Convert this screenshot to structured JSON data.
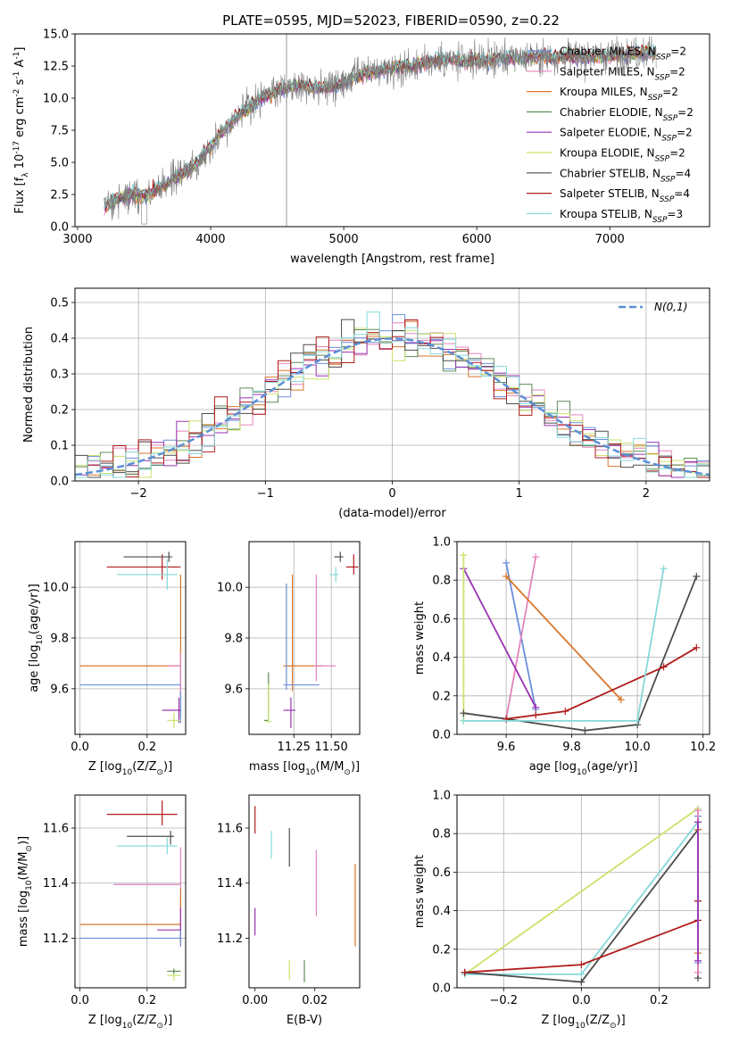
{
  "figure": {
    "title": "PLATE=0595, MJD=52023, FIBERID=0590, z=0.22"
  },
  "series_colors": {
    "chabrier_miles": "#6b8fdc",
    "salpeter_miles": "#e385bd",
    "kroupa_miles": "#d9762b",
    "chabrier_elodie": "#5e8c5a",
    "salpeter_elodie": "#9a34b3",
    "kroupa_elodie": "#c9e36a",
    "chabrier_stelib": "#4d4d4d",
    "salpeter_stelib": "#b01c1c",
    "kroupa_stelib": "#85d8d8",
    "normal_curve": "#5b8fd6",
    "data_spectrum": "#808080"
  },
  "chart_data": [
    {
      "id": "spectrum",
      "type": "line",
      "title": "PLATE=0595, MJD=52023, FIBERID=0590, z=0.22",
      "xlabel": "wavelength [Angstrom, rest frame]",
      "ylabel": "Flux [f_λ 10^-17 erg cm^-2 s^-1 A^-1]",
      "xlim": [
        2980,
        7750
      ],
      "ylim": [
        0,
        15
      ],
      "xticks": [
        3000,
        4000,
        5000,
        6000,
        7000
      ],
      "yticks": [
        0.0,
        2.5,
        5.0,
        7.5,
        10.0,
        12.5,
        15.0
      ],
      "legend_position": "right",
      "legend": [
        {
          "key": "chabrier_miles",
          "imf": "Chabrier",
          "lib": "MILES",
          "n_ssp": "2"
        },
        {
          "key": "salpeter_miles",
          "imf": "Salpeter",
          "lib": "MILES",
          "n_ssp": "2"
        },
        {
          "key": "kroupa_miles",
          "imf": "Kroupa",
          "lib": "MILES",
          "n_ssp": "2"
        },
        {
          "key": "chabrier_elodie",
          "imf": "Chabrier",
          "lib": "ELODIE",
          "n_ssp": "2"
        },
        {
          "key": "salpeter_elodie",
          "imf": "Salpeter",
          "lib": "ELODIE",
          "n_ssp": "2"
        },
        {
          "key": "kroupa_elodie",
          "imf": "Kroupa",
          "lib": "ELODIE",
          "n_ssp": "2"
        },
        {
          "key": "chabrier_stelib",
          "imf": "Chabrier",
          "lib": "STELIB",
          "n_ssp": "4"
        },
        {
          "key": "salpeter_stelib",
          "imf": "Salpeter",
          "lib": "STELIB",
          "n_ssp": "4"
        },
        {
          "key": "kroupa_stelib",
          "imf": "Kroupa",
          "lib": "STELIB",
          "n_ssp": "3"
        }
      ],
      "continuum": {
        "x": [
          3200,
          3300,
          3400,
          3500,
          3600,
          3700,
          3800,
          3900,
          4000,
          4100,
          4200,
          4300,
          4400,
          4500,
          4600,
          4700,
          4800,
          4900,
          5000,
          5100,
          5200,
          5300,
          5400,
          5500,
          5600,
          5700,
          5800,
          5900,
          6000,
          6100,
          6200,
          6300,
          6400,
          6500,
          6600,
          6700,
          6800,
          6900,
          7000,
          7100,
          7200,
          7300
        ],
        "y": [
          1.6,
          2.2,
          2.5,
          2.4,
          2.8,
          3.6,
          4.2,
          5.0,
          6.3,
          7.5,
          8.6,
          9.4,
          10.1,
          10.6,
          10.9,
          11.1,
          10.7,
          10.9,
          11.1,
          11.7,
          12.0,
          12.2,
          12.4,
          12.5,
          12.7,
          12.9,
          13.0,
          12.8,
          12.9,
          13.0,
          13.1,
          13.1,
          13.2,
          13.2,
          13.2,
          13.3,
          13.2,
          13.3,
          13.3,
          13.4,
          13.5,
          13.6
        ]
      }
    },
    {
      "id": "residuals",
      "type": "histogram",
      "xlabel": "(data-model)/error",
      "ylabel": "Normed distribution",
      "xlim": [
        -2.5,
        2.5
      ],
      "ylim": [
        0,
        0.54
      ],
      "xticks": [
        -2,
        -1,
        0,
        1,
        2
      ],
      "yticks": [
        0.0,
        0.1,
        0.2,
        0.3,
        0.4,
        0.5
      ],
      "grid": true,
      "legend_position": "top-right",
      "curve_label": "N(0,1)",
      "bin_width": 0.1,
      "bin_start": -2.5
    },
    {
      "id": "age_vs_Z",
      "type": "errorbar",
      "xlabel": "Z [log10(Z/Z⊙)]",
      "ylabel": "age [log10(age/yr)]",
      "xlim": [
        -0.015,
        0.315
      ],
      "ylim": [
        9.42,
        10.18
      ],
      "xticks": [
        0.0,
        0.2
      ],
      "yticks": [
        9.6,
        9.8,
        10.0
      ],
      "grid": true,
      "points": [
        {
          "key": "salpeter_stelib",
          "x": 0.245,
          "xerr": [
            0.165,
            0.055
          ],
          "y": 10.08,
          "yerr": [
            0.05,
            0.05
          ]
        },
        {
          "key": "chabrier_stelib",
          "x": 0.265,
          "xerr": [
            0.135,
            0.01
          ],
          "y": 10.12,
          "yerr": [
            0.02,
            0.02
          ]
        },
        {
          "key": "kroupa_stelib",
          "x": 0.26,
          "xerr": [
            0.15,
            0.03
          ],
          "y": 10.05,
          "yerr": [
            0.06,
            0.06
          ]
        },
        {
          "key": "kroupa_miles",
          "x": 0.3,
          "xerr": [
            0.3,
            0.0
          ],
          "y": 9.69,
          "yerr": [
            0.2,
            0.36
          ]
        },
        {
          "key": "chabrier_miles",
          "x": 0.3,
          "xerr": [
            0.3,
            0.0
          ],
          "y": 9.615,
          "yerr": [
            0.15,
            0.06
          ]
        },
        {
          "key": "salpeter_elodie",
          "x": 0.295,
          "xerr": [
            0.05,
            0.005
          ],
          "y": 9.515,
          "yerr": [
            0.05,
            0.05
          ]
        },
        {
          "key": "kroupa_elodie",
          "x": 0.28,
          "xerr": [
            0.02,
            0.02
          ],
          "y": 9.475,
          "yerr": [
            0.03,
            0.03
          ]
        },
        {
          "key": "salpeter_miles",
          "x": 0.3,
          "xerr": [
            0.04,
            0.0
          ],
          "y": 9.69,
          "yerr": [
            0.1,
            0.05
          ]
        }
      ]
    },
    {
      "id": "age_vs_mass",
      "type": "errorbar",
      "xlabel": "mass [log10(M/M⊙)]",
      "xlim": [
        10.95,
        11.69
      ],
      "ylim": [
        9.42,
        10.18
      ],
      "xticks": [
        11.25,
        11.5
      ],
      "yticks": [
        9.6,
        9.8,
        10.0
      ],
      "grid": true,
      "points": [
        {
          "key": "salpeter_stelib",
          "x": 11.65,
          "xerr": [
            0.05,
            0.03
          ],
          "y": 10.08,
          "yerr": [
            0.03,
            0.05
          ]
        },
        {
          "key": "chabrier_stelib",
          "x": 11.56,
          "xerr": [
            0.04,
            0.02
          ],
          "y": 10.12,
          "yerr": [
            0.02,
            0.02
          ]
        },
        {
          "key": "kroupa_stelib",
          "x": 11.53,
          "xerr": [
            0.04,
            0.02
          ],
          "y": 10.05,
          "yerr": [
            0.03,
            0.03
          ]
        },
        {
          "key": "kroupa_miles",
          "x": 11.24,
          "xerr": [
            0.06,
            0.2
          ],
          "y": 9.69,
          "yerr": [
            0.1,
            0.36
          ]
        },
        {
          "key": "chabrier_miles",
          "x": 11.2,
          "xerr": [
            0.02,
            0.22
          ],
          "y": 9.615,
          "yerr": [
            0.02,
            0.4
          ]
        },
        {
          "key": "salpeter_miles",
          "x": 11.4,
          "xerr": [
            0.02,
            0.13
          ],
          "y": 9.69,
          "yerr": [
            0.06,
            0.36
          ]
        },
        {
          "key": "salpeter_elodie",
          "x": 11.23,
          "xerr": [
            0.05,
            0.03
          ],
          "y": 9.515,
          "yerr": [
            0.07,
            0.05
          ]
        },
        {
          "key": "chabrier_elodie",
          "x": 11.08,
          "xerr": [
            0.03,
            0.0
          ],
          "y": 9.475,
          "yerr": [
            0.0,
            0.19
          ]
        },
        {
          "key": "kroupa_elodie",
          "x": 11.08,
          "xerr": [
            0.02,
            0.02
          ],
          "y": 9.47,
          "yerr": [
            0.0,
            0.15
          ]
        }
      ]
    },
    {
      "id": "massweight_vs_age",
      "type": "line",
      "xlabel": "age [log10(age/yr)]",
      "ylabel": "mass weight",
      "xlim": [
        9.45,
        10.22
      ],
      "ylim": [
        0,
        1
      ],
      "xticks": [
        9.6,
        9.8,
        10.0,
        10.2
      ],
      "yticks": [
        0.0,
        0.2,
        0.4,
        0.6,
        0.8,
        1.0
      ],
      "grid": true,
      "series": [
        {
          "key": "chabrier_miles",
          "x": [
            9.6,
            9.69
          ],
          "y": [
            0.89,
            0.13
          ]
        },
        {
          "key": "salpeter_miles",
          "x": [
            9.6,
            9.69
          ],
          "y": [
            0.08,
            0.92
          ]
        },
        {
          "key": "kroupa_miles",
          "x": [
            9.6,
            9.95
          ],
          "y": [
            0.82,
            0.18
          ]
        },
        {
          "key": "salpeter_elodie",
          "x": [
            9.47,
            9.69
          ],
          "y": [
            0.86,
            0.14
          ]
        },
        {
          "key": "kroupa_elodie",
          "x": [
            9.47,
            9.47
          ],
          "y": [
            0.93,
            0.07
          ]
        },
        {
          "key": "chabrier_stelib",
          "x": [
            9.47,
            9.6,
            9.84,
            10.0,
            10.18
          ],
          "y": [
            0.11,
            0.08,
            0.02,
            0.05,
            0.82
          ]
        },
        {
          "key": "salpeter_stelib",
          "x": [
            9.6,
            9.69,
            9.78,
            10.08,
            10.18
          ],
          "y": [
            0.08,
            0.1,
            0.12,
            0.35,
            0.45
          ]
        },
        {
          "key": "kroupa_stelib",
          "x": [
            9.47,
            10.0,
            10.08
          ],
          "y": [
            0.07,
            0.07,
            0.86
          ]
        }
      ]
    },
    {
      "id": "mass_vs_Z",
      "type": "errorbar",
      "xlabel": "Z [log10(Z/Z⊙)]",
      "ylabel": "mass [log10(M/M⊙)]",
      "xlim": [
        -0.015,
        0.315
      ],
      "ylim": [
        11.02,
        11.72
      ],
      "xticks": [
        0.0,
        0.2
      ],
      "yticks": [
        11.2,
        11.4,
        11.6
      ],
      "grid": true,
      "points": [
        {
          "key": "salpeter_stelib",
          "x": 0.245,
          "xerr": [
            0.165,
            0.045
          ],
          "y": 11.65,
          "yerr": [
            0.04,
            0.05
          ]
        },
        {
          "key": "chabrier_stelib",
          "x": 0.27,
          "xerr": [
            0.13,
            0.01
          ],
          "y": 11.57,
          "yerr": [
            0.03,
            0.02
          ]
        },
        {
          "key": "kroupa_stelib",
          "x": 0.26,
          "xerr": [
            0.15,
            0.03
          ],
          "y": 11.535,
          "yerr": [
            0.03,
            0.03
          ]
        },
        {
          "key": "salpeter_miles",
          "x": 0.3,
          "xerr": [
            0.2,
            0.0
          ],
          "y": 11.395,
          "yerr": [
            0.15,
            0.135
          ]
        },
        {
          "key": "kroupa_miles",
          "x": 0.3,
          "xerr": [
            0.3,
            0.0
          ],
          "y": 11.25,
          "yerr": [
            0.08,
            0.13
          ]
        },
        {
          "key": "salpeter_elodie",
          "x": 0.3,
          "xerr": [
            0.07,
            0.0
          ],
          "y": 11.23,
          "yerr": [
            0.04,
            0.08
          ]
        },
        {
          "key": "chabrier_miles",
          "x": 0.3,
          "xerr": [
            0.3,
            0.0
          ],
          "y": 11.2,
          "yerr": [
            0.03,
            0.03
          ]
        },
        {
          "key": "kroupa_elodie",
          "x": 0.28,
          "xerr": [
            0.02,
            0.02
          ],
          "y": 11.065,
          "yerr": [
            0.02,
            0.02
          ]
        },
        {
          "key": "chabrier_elodie",
          "x": 0.28,
          "xerr": [
            0.02,
            0.02
          ],
          "y": 11.08,
          "yerr": [
            0.01,
            0.01
          ]
        }
      ]
    },
    {
      "id": "mass_vs_ebv",
      "type": "errorbar",
      "xlabel": "E(B-V)",
      "xlim": [
        -0.002,
        0.035
      ],
      "ylim": [
        11.02,
        11.72
      ],
      "xticks": [
        0.0,
        0.02
      ],
      "yticks": [
        11.2,
        11.4,
        11.6
      ],
      "grid": false,
      "points": [
        {
          "key": "salpeter_stelib",
          "x": 0.0,
          "y": 11.63,
          "yerr": [
            0.05,
            0.05
          ]
        },
        {
          "key": "salpeter_elodie",
          "x": 0.0,
          "y": 11.26,
          "yerr": [
            0.05,
            0.05
          ]
        },
        {
          "key": "kroupa_stelib",
          "x": 0.0055,
          "y": 11.54,
          "yerr": [
            0.05,
            0.05
          ]
        },
        {
          "key": "chabrier_stelib",
          "x": 0.0115,
          "y": 11.53,
          "yerr": [
            0.07,
            0.07
          ]
        },
        {
          "key": "kroupa_elodie",
          "x": 0.0115,
          "y": 11.085,
          "yerr": [
            0.035,
            0.035
          ]
        },
        {
          "key": "chabrier_elodie",
          "x": 0.0165,
          "y": 11.08,
          "yerr": [
            0.04,
            0.04
          ]
        },
        {
          "key": "salpeter_miles",
          "x": 0.0205,
          "y": 11.4,
          "yerr": [
            0.12,
            0.12
          ]
        },
        {
          "key": "kroupa_miles",
          "x": 0.0335,
          "y": 11.32,
          "yerr": [
            0.15,
            0.15
          ]
        }
      ]
    },
    {
      "id": "massweight_vs_Z",
      "type": "line",
      "xlabel": "Z [log10(Z/Z⊙)]",
      "ylabel": "mass weight",
      "xlim": [
        -0.32,
        0.33
      ],
      "ylim": [
        0,
        1
      ],
      "xticks": [
        -0.2,
        0.0,
        0.2
      ],
      "yticks": [
        0.0,
        0.2,
        0.4,
        0.6,
        0.8,
        1.0
      ],
      "grid": true,
      "series": [
        {
          "key": "kroupa_elodie",
          "x": [
            -0.3,
            0.3
          ],
          "y": [
            0.07,
            0.93
          ]
        },
        {
          "key": "kroupa_stelib",
          "x": [
            -0.3,
            0.0,
            0.3
          ],
          "y": [
            0.07,
            0.07,
            0.86
          ]
        },
        {
          "key": "chabrier_stelib",
          "x": [
            -0.3,
            0.0,
            0.3,
            0.3
          ],
          "y": [
            0.08,
            0.03,
            0.82,
            0.05
          ]
        },
        {
          "key": "salpeter_stelib",
          "x": [
            -0.3,
            0.0,
            0.3
          ],
          "y": [
            0.08,
            0.12,
            0.35
          ]
        },
        {
          "key": "salpeter_stelib",
          "x": [
            0.3,
            0.3
          ],
          "y": [
            0.45,
            0.45
          ]
        },
        {
          "key": "kroupa_miles",
          "x": [
            0.3,
            0.3
          ],
          "y": [
            0.82,
            0.18
          ]
        },
        {
          "key": "chabrier_miles",
          "x": [
            0.3,
            0.3
          ],
          "y": [
            0.89,
            0.13
          ]
        },
        {
          "key": "salpeter_miles",
          "x": [
            0.3,
            0.3
          ],
          "y": [
            0.92,
            0.08
          ]
        },
        {
          "key": "salpeter_elodie",
          "x": [
            0.3,
            0.3
          ],
          "y": [
            0.86,
            0.14
          ]
        }
      ]
    }
  ]
}
